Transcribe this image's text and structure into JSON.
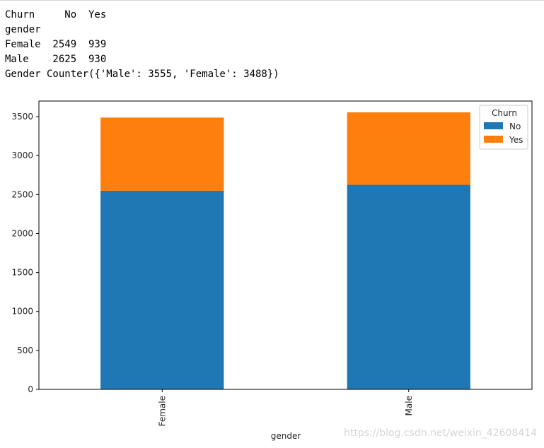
{
  "output_lines": [
    "Churn     No  Yes",
    "gender",
    "Female  2549  939",
    "Male    2625  930",
    "Gender Counter({'Male': 3555, 'Female': 3488})"
  ],
  "chart_data": {
    "type": "bar",
    "stacked": true,
    "categories": [
      "Female",
      "Male"
    ],
    "series": [
      {
        "name": "No",
        "values": [
          2549,
          2625
        ],
        "color": "#1f77b4"
      },
      {
        "name": "Yes",
        "values": [
          939,
          930
        ],
        "color": "#ff7f0e"
      }
    ],
    "xlabel": "gender",
    "ylabel": "",
    "ylim": [
      0,
      3700
    ],
    "yticks": [
      0,
      500,
      1000,
      1500,
      2000,
      2500,
      3000,
      3500
    ],
    "legend": {
      "title": "Churn",
      "placement": "top-right"
    },
    "grid": false
  },
  "watermark": "https://blog.csdn.net/weixin_42608414"
}
